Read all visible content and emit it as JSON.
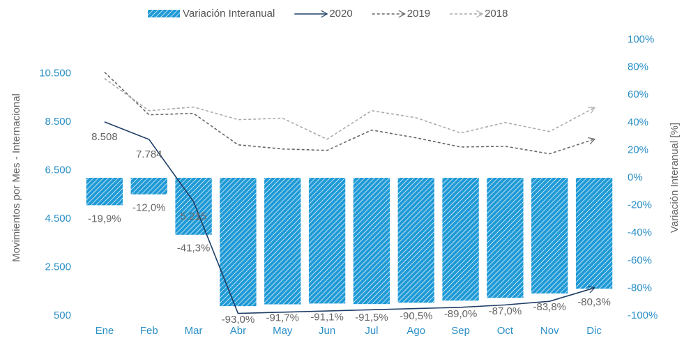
{
  "chart_data": {
    "type": "bar-line",
    "y_label": "Movimientos por Mes - Internacional",
    "y2_label": "Variación Interanual [%]",
    "categories": [
      "Ene",
      "Feb",
      "Mar",
      "Abr",
      "May",
      "Jun",
      "Jul",
      "Ago",
      "Sep",
      "Oct",
      "Nov",
      "Dic"
    ],
    "ylim": [
      500,
      11900
    ],
    "yticks": [
      500,
      {
        "value": 2500,
        "label": "2.500"
      },
      {
        "value": 4500,
        "label": "4.500"
      },
      {
        "value": 6500,
        "label": "6.500"
      },
      {
        "value": 8500,
        "label": "8.500"
      },
      {
        "value": 10500,
        "label": "10.500"
      }
    ],
    "y2lim": [
      -100,
      100
    ],
    "y2ticks": [
      {
        "value": -100,
        "label": "-100%"
      },
      {
        "value": -80,
        "label": "-80%"
      },
      {
        "value": -60,
        "label": "-60%"
      },
      {
        "value": -40,
        "label": "-40%"
      },
      {
        "value": -20,
        "label": "-20%"
      },
      {
        "value": 0,
        "label": "0%"
      },
      {
        "value": 20,
        "label": "20%"
      },
      {
        "value": 40,
        "label": "40%"
      },
      {
        "value": 60,
        "label": "60%"
      },
      {
        "value": 80,
        "label": "80%"
      },
      {
        "value": 100,
        "label": "100%"
      }
    ],
    "series": [
      {
        "name": "Variación Interanual",
        "type": "bar",
        "axis": "y2",
        "color": "#1f9ad6",
        "values": [
          -19.9,
          -12.0,
          -41.3,
          -93.0,
          -91.7,
          -91.1,
          -91.5,
          -90.5,
          -89.0,
          -87.0,
          -83.8,
          -80.3
        ],
        "value_labels": [
          "-19,9%",
          "-12,0%",
          "-41,3%",
          "-93,0%",
          "-91,7%",
          "-91,1%",
          "-91,5%",
          "-90,5%",
          "-89,0%",
          "-87,0%",
          "-83,8%",
          "-80,3%"
        ]
      },
      {
        "name": "2020",
        "type": "line",
        "color": "#1f3f66",
        "dash": "none",
        "values": [
          8508,
          7784,
          5215,
          600,
          650,
          700,
          750,
          800,
          850,
          950,
          1100,
          1650
        ],
        "value_labels": [
          "8.508",
          "7.784",
          "5.215",
          null,
          null,
          null,
          null,
          null,
          null,
          null,
          null,
          null
        ]
      },
      {
        "name": "2019",
        "type": "line",
        "color": "#666666",
        "dash": "4 3",
        "values": [
          10560,
          8800,
          8860,
          7560,
          7390,
          7330,
          8170,
          7850,
          7470,
          7500,
          7190,
          7790
        ]
      },
      {
        "name": "2018",
        "type": "line",
        "color": "#aaaaaa",
        "dash": "4 3",
        "values": [
          10300,
          8970,
          9120,
          8600,
          8660,
          7790,
          8970,
          8680,
          8050,
          8480,
          8110,
          9090
        ]
      }
    ]
  }
}
